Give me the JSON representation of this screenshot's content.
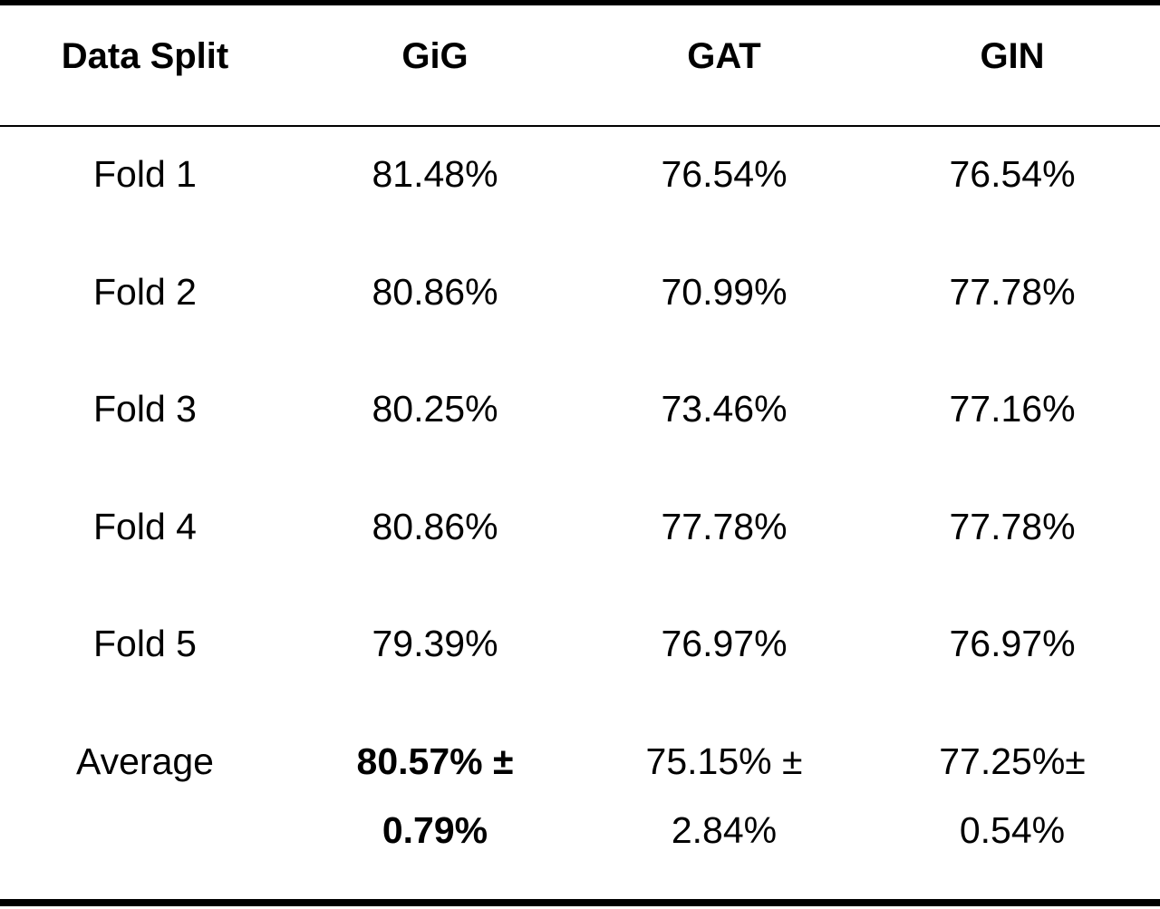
{
  "chart_data": {
    "type": "table",
    "columns": [
      "Data Split",
      "GiG",
      "GAT",
      "GIN"
    ],
    "rows": [
      {
        "split": "Fold 1",
        "GiG": "81.48%",
        "GAT": "76.54%",
        "GIN": "76.54%"
      },
      {
        "split": "Fold 2",
        "GiG": "80.86%",
        "GAT": "70.99%",
        "GIN": "77.78%"
      },
      {
        "split": "Fold 3",
        "GiG": "80.25%",
        "GAT": "73.46%",
        "GIN": "77.16%"
      },
      {
        "split": "Fold 4",
        "GiG": "80.86%",
        "GAT": "77.78%",
        "GIN": "77.78%"
      },
      {
        "split": "Fold 5",
        "GiG": "79.39%",
        "GAT": "76.97%",
        "GIN": "76.97%"
      }
    ],
    "average": {
      "label": "Average",
      "GiG": [
        "80.57% ±",
        "0.79%"
      ],
      "GAT": [
        "75.15% ±",
        "2.84%"
      ],
      "GIN": [
        "77.25%±",
        "0.54%"
      ]
    }
  }
}
